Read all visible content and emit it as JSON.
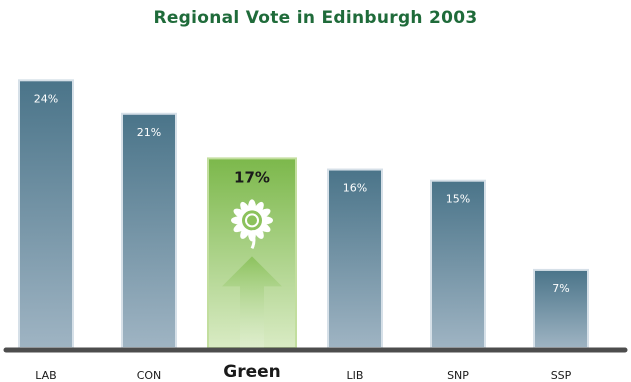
{
  "chart_data": {
    "type": "bar",
    "title": "Regional Vote in Edinburgh 2003",
    "categories": [
      "LAB",
      "CON",
      "Green",
      "LIB",
      "SNP",
      "SSP"
    ],
    "values": [
      24,
      21,
      17,
      16,
      15,
      7
    ],
    "value_labels": [
      "24%",
      "21%",
      "17%",
      "16%",
      "15%",
      "7%"
    ],
    "highlight_category": "Green",
    "xlabel": "",
    "ylabel": "",
    "ylim": [
      0,
      26
    ],
    "grid": false,
    "legend": "none",
    "colors": {
      "title": "#1f6b3a",
      "bar_top": "#4a7489",
      "bar_bottom": "#9fb4c3",
      "bar_stroke": "#d6e0e8",
      "highlight_top": "#7cb84b",
      "highlight_bottom": "#d9ebc4",
      "highlight_stroke": "#c2de9e",
      "axis": "#4d4d4d",
      "label": "#1a1a1a"
    },
    "icons": [
      "sunflower-icon",
      "up-arrow-icon"
    ]
  }
}
